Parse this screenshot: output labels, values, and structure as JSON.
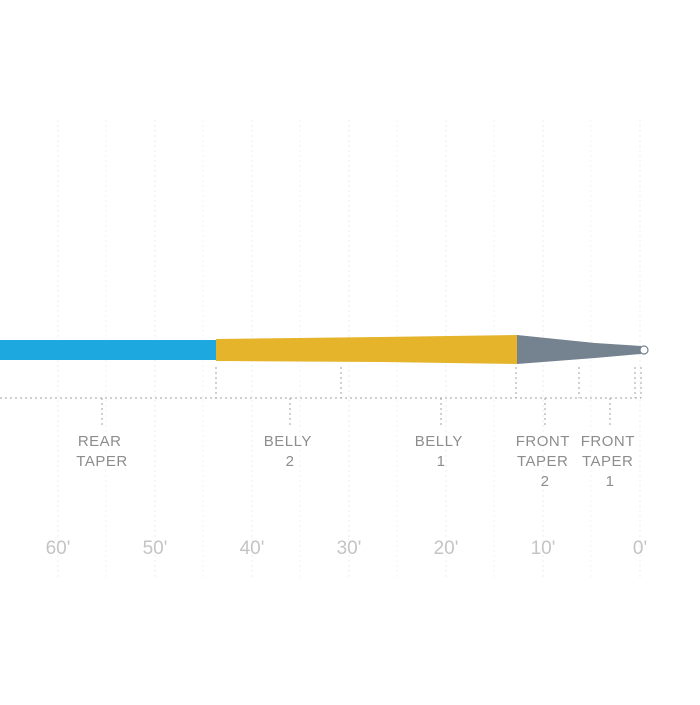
{
  "colors": {
    "running_line": "#1ea8e0",
    "belly": "#e5b42a",
    "front_taper": "#758390",
    "tip": "#ffffff",
    "grid": "#ececec",
    "dotted": "#a0a0a0",
    "label": "#8d8d8d",
    "scale": "#c4c4c4"
  },
  "segments": [
    {
      "id": "rear-taper",
      "lines": [
        "REAR",
        "TAPER"
      ]
    },
    {
      "id": "belly-2",
      "lines": [
        "BELLY",
        "2"
      ]
    },
    {
      "id": "belly-1",
      "lines": [
        "BELLY",
        "1"
      ]
    },
    {
      "id": "front-taper-2",
      "lines": [
        "FRONT",
        "TAPER",
        "2"
      ]
    },
    {
      "id": "front-taper-1",
      "lines": [
        "FRONT",
        "TAPER",
        "1"
      ]
    }
  ],
  "scale": {
    "ticks": [
      "60'",
      "50'",
      "40'",
      "30'",
      "20'",
      "10'",
      "0'"
    ]
  }
}
